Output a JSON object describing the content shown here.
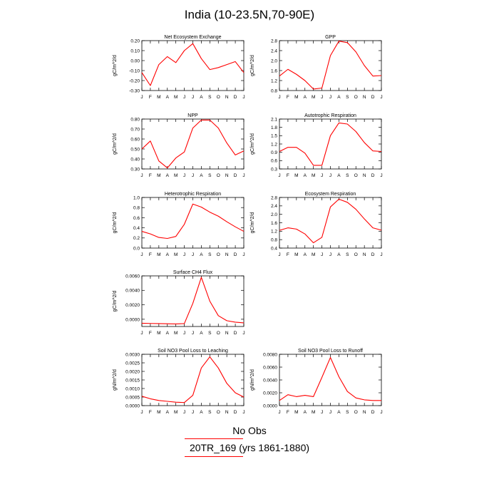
{
  "figure": {
    "title": "India (10-23.5N,70-90E)",
    "legend": [
      {
        "label": "No Obs",
        "color": "#ff0000"
      },
      {
        "label": "20TR_169 (yrs 1861-1880)",
        "color": "#ff0000"
      }
    ]
  },
  "chart_data": [
    {
      "type": "line",
      "title": "Net Ecosystem Exchange",
      "ylabel": "gC/m^2/d",
      "categories": [
        "J",
        "F",
        "M",
        "A",
        "M",
        "J",
        "J",
        "A",
        "S",
        "O",
        "N",
        "D",
        "J"
      ],
      "ylim": [
        -0.3,
        0.2
      ],
      "yticks": [
        "0.20",
        "0.10",
        "0.00",
        "-0.10",
        "-0.20",
        "-0.30"
      ],
      "ytick_values": [
        0.2,
        0.1,
        0.0,
        -0.1,
        -0.2,
        -0.3
      ],
      "series": [
        {
          "values": [
            -0.12,
            -0.25,
            -0.04,
            0.04,
            -0.02,
            0.1,
            0.17,
            0.02,
            -0.09,
            -0.07,
            -0.04,
            -0.01,
            -0.12
          ],
          "color": "#ff0000"
        }
      ]
    },
    {
      "type": "line",
      "title": "GPP",
      "ylabel": "gC/m^2/d",
      "categories": [
        "J",
        "F",
        "M",
        "A",
        "M",
        "J",
        "J",
        "A",
        "S",
        "O",
        "N",
        "D",
        "J"
      ],
      "ylim": [
        0.8,
        2.8
      ],
      "yticks": [
        "2.8",
        "2.4",
        "2.0",
        "1.6",
        "1.2",
        "0.8"
      ],
      "ytick_values": [
        2.8,
        2.4,
        2.0,
        1.6,
        1.2,
        0.8
      ],
      "series": [
        {
          "values": [
            1.38,
            1.65,
            1.45,
            1.2,
            0.86,
            0.9,
            2.2,
            2.78,
            2.72,
            2.35,
            1.8,
            1.38,
            1.4
          ],
          "color": "#ff0000"
        }
      ]
    },
    {
      "type": "line",
      "title": "NPP",
      "ylabel": "gC/m^2/d",
      "categories": [
        "J",
        "F",
        "M",
        "A",
        "M",
        "J",
        "J",
        "A",
        "S",
        "O",
        "N",
        "D",
        "J"
      ],
      "ylim": [
        0.3,
        0.8
      ],
      "yticks": [
        "0.80",
        "0.70",
        "0.60",
        "0.50",
        "0.40",
        "0.30"
      ],
      "ytick_values": [
        0.8,
        0.7,
        0.6,
        0.5,
        0.4,
        0.3
      ],
      "series": [
        {
          "values": [
            0.5,
            0.58,
            0.38,
            0.31,
            0.41,
            0.47,
            0.71,
            0.79,
            0.79,
            0.71,
            0.56,
            0.44,
            0.48
          ],
          "color": "#ff0000"
        }
      ]
    },
    {
      "type": "line",
      "title": "Autotrophic Respiration",
      "ylabel": "gC/m^2/d",
      "categories": [
        "J",
        "F",
        "M",
        "A",
        "M",
        "J",
        "J",
        "A",
        "S",
        "O",
        "N",
        "D",
        "J"
      ],
      "ylim": [
        0.3,
        2.1
      ],
      "yticks": [
        "2.1",
        "1.8",
        "1.5",
        "1.2",
        "0.9",
        "0.6",
        "0.3"
      ],
      "ytick_values": [
        2.1,
        1.8,
        1.5,
        1.2,
        0.9,
        0.6,
        0.3
      ],
      "series": [
        {
          "values": [
            0.93,
            1.08,
            1.08,
            0.87,
            0.43,
            0.43,
            1.5,
            1.96,
            1.92,
            1.65,
            1.25,
            0.95,
            0.93
          ],
          "color": "#ff0000"
        }
      ]
    },
    {
      "type": "line",
      "title": "Heterotrophic Respiration",
      "ylabel": "gC/m^2/d",
      "categories": [
        "J",
        "F",
        "M",
        "A",
        "M",
        "J",
        "J",
        "A",
        "S",
        "O",
        "N",
        "D",
        "J"
      ],
      "ylim": [
        0.0,
        1.0
      ],
      "yticks": [
        "1.0",
        "0.8",
        "0.6",
        "0.4",
        "0.2",
        "0.0"
      ],
      "ytick_values": [
        1.0,
        0.8,
        0.6,
        0.4,
        0.2,
        0.0
      ],
      "series": [
        {
          "values": [
            0.33,
            0.28,
            0.21,
            0.19,
            0.23,
            0.47,
            0.87,
            0.81,
            0.71,
            0.63,
            0.52,
            0.42,
            0.33
          ],
          "color": "#ff0000"
        }
      ]
    },
    {
      "type": "line",
      "title": "Ecosystem Respiration",
      "ylabel": "gC/m^2/d",
      "categories": [
        "J",
        "F",
        "M",
        "A",
        "M",
        "J",
        "J",
        "A",
        "S",
        "O",
        "N",
        "D",
        "J"
      ],
      "ylim": [
        0.4,
        2.8
      ],
      "yticks": [
        "2.8",
        "2.4",
        "2.0",
        "1.6",
        "1.2",
        "0.8",
        "0.4"
      ],
      "ytick_values": [
        2.8,
        2.4,
        2.0,
        1.6,
        1.2,
        0.8,
        0.4
      ],
      "series": [
        {
          "values": [
            1.24,
            1.36,
            1.3,
            1.07,
            0.65,
            0.91,
            2.35,
            2.72,
            2.57,
            2.24,
            1.78,
            1.36,
            1.25
          ],
          "color": "#ff0000"
        }
      ]
    },
    {
      "type": "line",
      "title": "Surface CH4 Flux",
      "ylabel": "gC/m^2/d",
      "categories": [
        "J",
        "F",
        "M",
        "A",
        "M",
        "J",
        "J",
        "A",
        "S",
        "O",
        "N",
        "D",
        "J"
      ],
      "ylim": [
        -0.001,
        0.006
      ],
      "yticks": [
        "0.0060",
        "0.0040",
        "0.0020",
        "0.0000"
      ],
      "ytick_values": [
        0.006,
        0.004,
        0.002,
        0.0
      ],
      "series": [
        {
          "values": [
            -0.00055,
            -0.00058,
            -0.0006,
            -0.00062,
            -0.00065,
            -0.0006,
            0.0022,
            0.0058,
            0.0025,
            0.0005,
            -0.0002,
            -0.0004,
            -0.0005
          ],
          "color": "#ff0000"
        }
      ]
    },
    {
      "type": "line",
      "title": "Soil NO3 Pool Loss to Leaching",
      "ylabel": "gN/m^2/d",
      "categories": [
        "J",
        "F",
        "M",
        "A",
        "M",
        "J",
        "J",
        "A",
        "S",
        "O",
        "N",
        "D",
        "J"
      ],
      "ylim": [
        0.0,
        0.003
      ],
      "yticks": [
        "0.0030",
        "0.0025",
        "0.0020",
        "0.0015",
        "0.0010",
        "0.0005",
        "0.0000"
      ],
      "ytick_values": [
        0.003,
        0.0025,
        0.002,
        0.0015,
        0.001,
        0.0005,
        0.0
      ],
      "series": [
        {
          "values": [
            0.00055,
            0.0004,
            0.0003,
            0.00025,
            0.0002,
            0.00018,
            0.0006,
            0.0022,
            0.00285,
            0.0022,
            0.0013,
            0.00075,
            0.0005
          ],
          "color": "#ff0000"
        }
      ]
    },
    {
      "type": "line",
      "title": "Soil NO3 Pool Loss to Runoff",
      "ylabel": "gN/m^2/d",
      "categories": [
        "J",
        "F",
        "M",
        "A",
        "M",
        "J",
        "J",
        "A",
        "S",
        "O",
        "N",
        "D",
        "J"
      ],
      "ylim": [
        0.0,
        0.008
      ],
      "yticks": [
        "0.0080",
        "0.0060",
        "0.0040",
        "0.0020",
        "0.0000"
      ],
      "ytick_values": [
        0.008,
        0.006,
        0.004,
        0.002,
        0.0
      ],
      "series": [
        {
          "values": [
            0.0008,
            0.0017,
            0.0014,
            0.0016,
            0.0014,
            0.0044,
            0.0075,
            0.0045,
            0.0022,
            0.0012,
            0.0009,
            0.0008,
            0.0008
          ],
          "color": "#ff0000"
        }
      ]
    }
  ]
}
